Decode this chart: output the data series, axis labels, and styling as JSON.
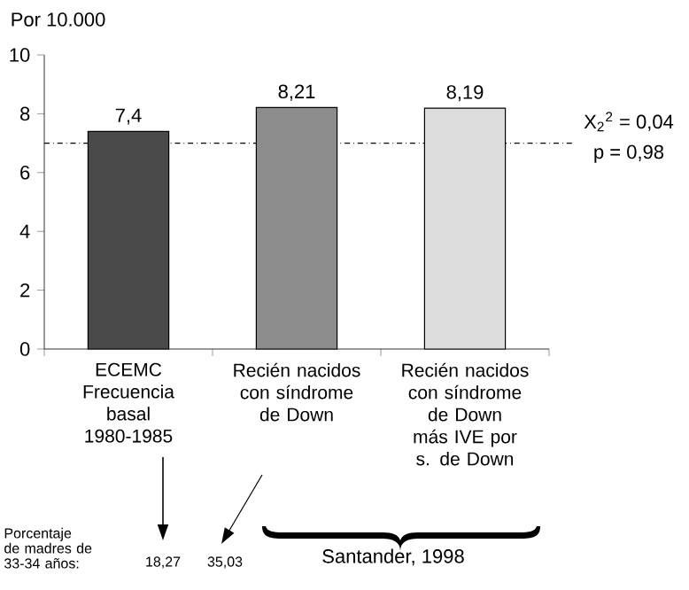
{
  "chart_data": {
    "type": "bar",
    "categories": [
      "ECEMC Frecuencia basal 1980-1985",
      "Recién nacidos con síndrome de Down",
      "Recién nacidos con síndrome de Down más IVE por s. de Down"
    ],
    "values": [
      7.4,
      8.21,
      8.19
    ],
    "colors": [
      "#4a4a4a",
      "#8c8c8c",
      "#dcdcdc"
    ],
    "value_labels": [
      "7,4",
      "8,21",
      "8,19"
    ],
    "ylabel": "Por 10.000",
    "ylim": [
      0,
      10
    ],
    "yticks": [
      0,
      2,
      4,
      6,
      8,
      10
    ],
    "ref_lines": [
      {
        "axis": "y",
        "value": 7,
        "line_style": "dashdot"
      }
    ],
    "annotations": [
      "X$_{2}$$^{2}$ = 0,04",
      "p = 0,98",
      "Porcentaje de madres de 33-34 años:",
      "18,27",
      "35,03",
      "Santander, 1998"
    ],
    "grid": false
  }
}
